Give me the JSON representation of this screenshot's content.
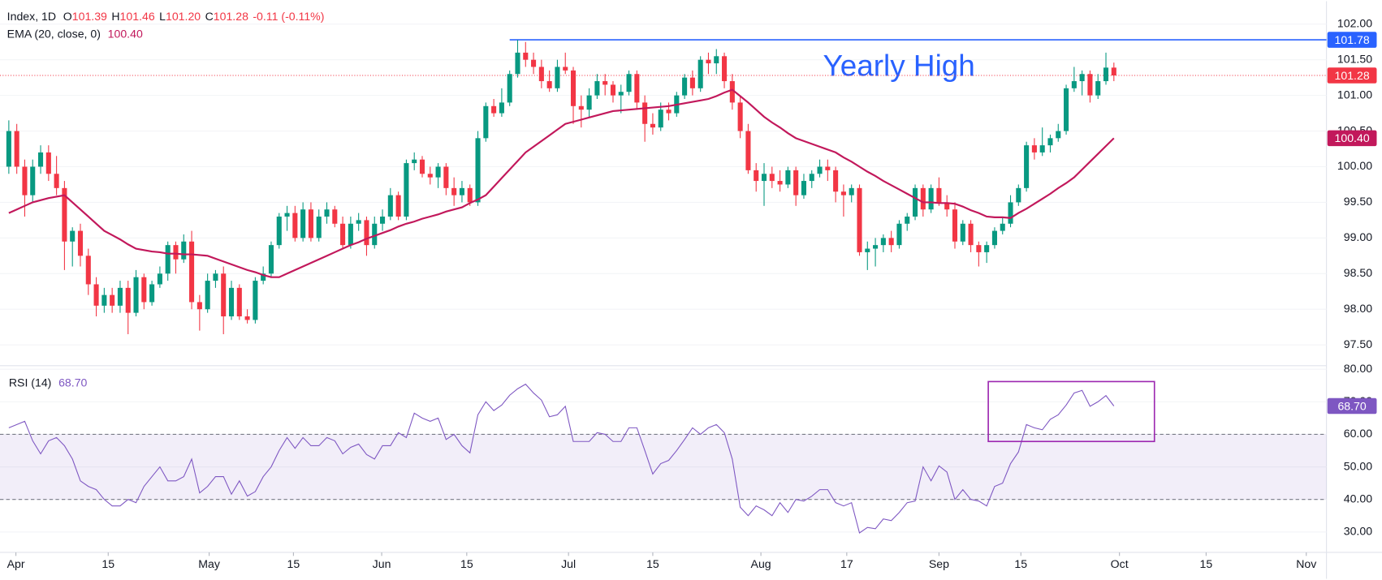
{
  "chart_data": {
    "type": "candlestick",
    "header": {
      "symbol": "Index, 1D",
      "fields": [
        {
          "key": "O",
          "value": "101.39"
        },
        {
          "key": "H",
          "value": "101.46"
        },
        {
          "key": "L",
          "value": "101.20"
        },
        {
          "key": "C",
          "value": "101.28"
        }
      ],
      "change": "-0.11 (-0.11%)"
    },
    "up_color": "#089981",
    "down_color": "#f23645",
    "ohlc": [
      [
        100.0,
        100.65,
        99.9,
        100.5
      ],
      [
        100.5,
        100.6,
        99.9,
        100.0
      ],
      [
        100.0,
        100.1,
        99.3,
        99.6
      ],
      [
        99.6,
        100.1,
        99.5,
        100.0
      ],
      [
        100.0,
        100.3,
        99.9,
        100.2
      ],
      [
        100.2,
        100.3,
        99.8,
        99.9
      ],
      [
        99.9,
        100.15,
        99.6,
        99.7
      ],
      [
        99.7,
        99.8,
        98.55,
        98.95
      ],
      [
        98.95,
        99.15,
        98.6,
        99.1
      ],
      [
        99.1,
        99.2,
        98.6,
        98.75
      ],
      [
        98.75,
        98.85,
        98.2,
        98.35
      ],
      [
        98.35,
        98.45,
        97.9,
        98.05
      ],
      [
        98.05,
        98.3,
        97.95,
        98.2
      ],
      [
        98.2,
        98.3,
        97.95,
        98.05
      ],
      [
        98.05,
        98.4,
        97.95,
        98.3
      ],
      [
        98.3,
        98.4,
        97.65,
        97.95
      ],
      [
        97.95,
        98.55,
        97.9,
        98.45
      ],
      [
        98.45,
        98.5,
        98.0,
        98.1
      ],
      [
        98.1,
        98.4,
        98.05,
        98.35
      ],
      [
        98.35,
        98.6,
        98.3,
        98.5
      ],
      [
        98.5,
        98.95,
        98.4,
        98.9
      ],
      [
        98.9,
        98.95,
        98.5,
        98.7
      ],
      [
        98.7,
        99.05,
        98.65,
        98.95
      ],
      [
        98.95,
        99.1,
        98.0,
        98.1
      ],
      [
        98.1,
        98.2,
        97.7,
        98.0
      ],
      [
        98.0,
        98.5,
        97.95,
        98.4
      ],
      [
        98.4,
        98.55,
        98.3,
        98.5
      ],
      [
        98.5,
        98.6,
        97.65,
        97.9
      ],
      [
        97.9,
        98.4,
        97.85,
        98.3
      ],
      [
        98.3,
        98.35,
        97.85,
        97.9
      ],
      [
        97.9,
        98.0,
        97.8,
        97.85
      ],
      [
        97.85,
        98.45,
        97.8,
        98.4
      ],
      [
        98.4,
        98.6,
        98.35,
        98.5
      ],
      [
        98.5,
        98.95,
        98.45,
        98.9
      ],
      [
        98.9,
        99.35,
        98.85,
        99.3
      ],
      [
        99.3,
        99.45,
        99.1,
        99.35
      ],
      [
        99.35,
        99.45,
        98.95,
        99.0
      ],
      [
        99.0,
        99.5,
        98.95,
        99.4
      ],
      [
        99.4,
        99.5,
        98.95,
        99.0
      ],
      [
        99.0,
        99.4,
        98.95,
        99.3
      ],
      [
        99.3,
        99.5,
        99.2,
        99.4
      ],
      [
        99.4,
        99.45,
        99.15,
        99.2
      ],
      [
        99.2,
        99.3,
        98.85,
        98.9
      ],
      [
        98.9,
        99.3,
        98.85,
        99.2
      ],
      [
        99.2,
        99.35,
        99.1,
        99.25
      ],
      [
        99.25,
        99.3,
        98.75,
        98.9
      ],
      [
        98.9,
        99.3,
        98.85,
        99.2
      ],
      [
        99.2,
        99.4,
        99.1,
        99.3
      ],
      [
        99.3,
        99.7,
        99.25,
        99.6
      ],
      [
        99.6,
        99.65,
        99.25,
        99.3
      ],
      [
        99.3,
        100.1,
        99.25,
        100.05
      ],
      [
        100.05,
        100.2,
        99.95,
        100.1
      ],
      [
        100.1,
        100.15,
        99.85,
        99.9
      ],
      [
        99.9,
        100.0,
        99.75,
        99.85
      ],
      [
        99.85,
        100.05,
        99.7,
        100.0
      ],
      [
        100.0,
        100.05,
        99.6,
        99.7
      ],
      [
        99.7,
        99.85,
        99.45,
        99.6
      ],
      [
        99.6,
        99.8,
        99.5,
        99.7
      ],
      [
        99.7,
        99.75,
        99.45,
        99.5
      ],
      [
        99.5,
        100.5,
        99.45,
        100.4
      ],
      [
        100.4,
        100.9,
        100.35,
        100.85
      ],
      [
        100.85,
        100.95,
        100.7,
        100.75
      ],
      [
        100.75,
        101.1,
        100.7,
        100.9
      ],
      [
        100.9,
        101.35,
        100.85,
        101.3
      ],
      [
        101.3,
        101.78,
        101.25,
        101.6
      ],
      [
        101.6,
        101.75,
        101.4,
        101.5
      ],
      [
        101.5,
        101.6,
        101.3,
        101.4
      ],
      [
        101.4,
        101.5,
        101.1,
        101.2
      ],
      [
        101.2,
        101.35,
        101.05,
        101.1
      ],
      [
        101.1,
        101.5,
        101.05,
        101.4
      ],
      [
        101.4,
        101.6,
        101.3,
        101.35
      ],
      [
        101.35,
        101.4,
        100.6,
        100.85
      ],
      [
        100.85,
        101.0,
        100.55,
        100.8
      ],
      [
        100.8,
        101.1,
        100.7,
        101.0
      ],
      [
        101.0,
        101.3,
        100.95,
        101.2
      ],
      [
        101.2,
        101.3,
        101.0,
        101.15
      ],
      [
        101.15,
        101.2,
        100.9,
        101.0
      ],
      [
        101.0,
        101.15,
        100.75,
        101.05
      ],
      [
        101.05,
        101.35,
        101.0,
        101.3
      ],
      [
        101.3,
        101.35,
        100.8,
        100.9
      ],
      [
        100.9,
        101.0,
        100.35,
        100.6
      ],
      [
        100.6,
        100.75,
        100.45,
        100.55
      ],
      [
        100.55,
        100.9,
        100.5,
        100.8
      ],
      [
        100.8,
        100.9,
        100.65,
        100.75
      ],
      [
        100.75,
        101.05,
        100.7,
        101.0
      ],
      [
        101.0,
        101.3,
        100.95,
        101.25
      ],
      [
        101.25,
        101.35,
        101.0,
        101.1
      ],
      [
        101.1,
        101.55,
        101.05,
        101.5
      ],
      [
        101.5,
        101.6,
        101.3,
        101.45
      ],
      [
        101.45,
        101.65,
        101.3,
        101.55
      ],
      [
        101.55,
        101.6,
        101.1,
        101.2
      ],
      [
        101.2,
        101.3,
        100.8,
        100.9
      ],
      [
        100.9,
        101.0,
        100.4,
        100.5
      ],
      [
        100.5,
        100.6,
        99.9,
        99.95
      ],
      [
        99.95,
        100.05,
        99.65,
        99.8
      ],
      [
        99.8,
        100.05,
        99.45,
        99.9
      ],
      [
        99.9,
        100.0,
        99.7,
        99.8
      ],
      [
        99.8,
        99.95,
        99.65,
        99.75
      ],
      [
        99.75,
        100.0,
        99.7,
        99.95
      ],
      [
        99.95,
        100.0,
        99.45,
        99.6
      ],
      [
        99.6,
        99.9,
        99.55,
        99.8
      ],
      [
        99.8,
        99.95,
        99.7,
        99.9
      ],
      [
        99.9,
        100.1,
        99.85,
        100.0
      ],
      [
        100.0,
        100.1,
        99.8,
        99.95
      ],
      [
        99.95,
        100.0,
        99.5,
        99.65
      ],
      [
        99.65,
        99.75,
        99.3,
        99.6
      ],
      [
        99.6,
        99.75,
        99.5,
        99.7
      ],
      [
        99.7,
        99.75,
        98.75,
        98.8
      ],
      [
        98.8,
        98.95,
        98.55,
        98.85
      ],
      [
        98.85,
        99.0,
        98.6,
        98.9
      ],
      [
        98.9,
        99.05,
        98.8,
        99.0
      ],
      [
        99.0,
        99.1,
        98.8,
        98.9
      ],
      [
        98.9,
        99.25,
        98.85,
        99.2
      ],
      [
        99.2,
        99.35,
        99.1,
        99.3
      ],
      [
        99.3,
        99.75,
        99.25,
        99.7
      ],
      [
        99.7,
        99.75,
        99.3,
        99.4
      ],
      [
        99.4,
        99.75,
        99.35,
        99.7
      ],
      [
        99.7,
        99.85,
        99.45,
        99.5
      ],
      [
        99.5,
        99.6,
        99.3,
        99.4
      ],
      [
        99.4,
        99.5,
        98.85,
        98.95
      ],
      [
        98.95,
        99.25,
        98.9,
        99.2
      ],
      [
        99.2,
        99.25,
        98.8,
        98.9
      ],
      [
        98.9,
        98.95,
        98.6,
        98.8
      ],
      [
        98.8,
        98.95,
        98.65,
        98.9
      ],
      [
        98.9,
        99.15,
        98.85,
        99.1
      ],
      [
        99.1,
        99.3,
        99.05,
        99.2
      ],
      [
        99.2,
        99.6,
        99.15,
        99.5
      ],
      [
        99.5,
        99.75,
        99.45,
        99.7
      ],
      [
        99.7,
        100.35,
        99.65,
        100.3
      ],
      [
        100.3,
        100.4,
        100.1,
        100.2
      ],
      [
        100.2,
        100.55,
        100.15,
        100.3
      ],
      [
        100.3,
        100.45,
        100.2,
        100.4
      ],
      [
        100.4,
        100.6,
        100.35,
        100.5
      ],
      [
        100.5,
        101.15,
        100.45,
        101.1
      ],
      [
        101.1,
        101.4,
        101.05,
        101.2
      ],
      [
        101.2,
        101.35,
        101.0,
        101.3
      ],
      [
        101.3,
        101.35,
        100.9,
        101.0
      ],
      [
        101.0,
        101.3,
        100.95,
        101.2
      ],
      [
        101.2,
        101.6,
        101.15,
        101.39
      ],
      [
        101.39,
        101.46,
        101.2,
        101.28
      ]
    ],
    "ema": {
      "label": "EMA (20, close, 0)",
      "last_label": "100.40",
      "color": "#c2185b",
      "values": [
        99.35,
        99.4,
        99.45,
        99.5,
        99.53,
        99.56,
        99.58,
        99.6,
        99.5,
        99.4,
        99.3,
        99.2,
        99.1,
        99.04,
        98.98,
        98.91,
        98.85,
        98.83,
        98.81,
        98.8,
        98.78,
        98.78,
        98.77,
        98.77,
        98.76,
        98.75,
        98.71,
        98.67,
        98.63,
        98.59,
        98.55,
        98.52,
        98.48,
        98.45,
        98.45,
        98.5,
        98.55,
        98.6,
        98.65,
        98.7,
        98.75,
        98.8,
        98.85,
        98.9,
        98.94,
        98.99,
        99.03,
        99.07,
        99.11,
        99.16,
        99.2,
        99.23,
        99.27,
        99.3,
        99.33,
        99.37,
        99.4,
        99.43,
        99.49,
        99.54,
        99.6,
        99.72,
        99.84,
        99.96,
        100.08,
        100.2,
        100.28,
        100.36,
        100.44,
        100.52,
        100.6,
        100.63,
        100.66,
        100.69,
        100.72,
        100.75,
        100.78,
        100.79,
        100.8,
        100.81,
        100.82,
        100.83,
        100.84,
        100.85,
        100.87,
        100.89,
        100.91,
        100.93,
        100.95,
        100.99,
        101.04,
        101.08,
        100.99,
        100.9,
        100.8,
        100.7,
        100.62,
        100.55,
        100.47,
        100.4,
        100.36,
        100.32,
        100.28,
        100.24,
        100.2,
        100.13,
        100.07,
        100.0,
        99.93,
        99.87,
        99.8,
        99.74,
        99.68,
        99.62,
        99.56,
        99.5,
        99.5,
        99.49,
        99.49,
        99.48,
        99.44,
        99.39,
        99.35,
        99.3,
        99.29,
        99.29,
        99.28,
        99.35,
        99.41,
        99.48,
        99.55,
        99.62,
        99.7,
        99.77,
        99.85,
        99.96,
        100.07,
        100.18,
        100.29,
        100.4
      ]
    },
    "yearly_high": {
      "label": "Yearly High",
      "value": 101.78,
      "start": 63,
      "color": "#2962ff"
    },
    "ylim": [
      97.22,
      102.26
    ],
    "yticks": [
      {
        "value": 97.5,
        "label": "97.50"
      },
      {
        "value": 98,
        "label": "98.00"
      },
      {
        "value": 98.5,
        "label": "98.50"
      },
      {
        "value": 99,
        "label": "99.00"
      },
      {
        "value": 99.5,
        "label": "99.50"
      },
      {
        "value": 100,
        "label": "100.00"
      },
      {
        "value": 100.5,
        "label": "100.50"
      },
      {
        "value": 101,
        "label": "101.00"
      },
      {
        "value": 101.5,
        "label": "101.50"
      },
      {
        "value": 102,
        "label": "102.00"
      }
    ],
    "xlim": [
      -1.11,
      165.74
    ],
    "xticks": [
      {
        "value": 0.89,
        "label": "Apr"
      },
      {
        "value": 12.5,
        "label": "15"
      },
      {
        "value": 25.2,
        "label": "May"
      },
      {
        "value": 35.8,
        "label": "15"
      },
      {
        "value": 46.9,
        "label": "Jun"
      },
      {
        "value": 57.6,
        "label": "15"
      },
      {
        "value": 70.4,
        "label": "Jul"
      },
      {
        "value": 81.0,
        "label": "15"
      },
      {
        "value": 94.6,
        "label": "Aug"
      },
      {
        "value": 105.4,
        "label": "17"
      },
      {
        "value": 117.0,
        "label": "Sep"
      },
      {
        "value": 127.3,
        "label": "15"
      },
      {
        "value": 139.7,
        "label": "Oct"
      },
      {
        "value": 150.6,
        "label": "15"
      },
      {
        "value": 163.2,
        "label": "Nov"
      }
    ],
    "rsi": {
      "label": "RSI (14)",
      "last_label": "68.70",
      "color": "#7e57c2",
      "ylim": [
        24,
        80.8
      ],
      "yticks": [
        {
          "value": 30,
          "label": "30.00"
        },
        {
          "value": 40,
          "label": "40.00"
        },
        {
          "value": 50,
          "label": "50.00"
        },
        {
          "value": 60,
          "label": "60.00"
        },
        {
          "value": 70,
          "label": "70.00"
        },
        {
          "value": 80,
          "label": "80.00"
        }
      ],
      "band": [
        40,
        60
      ],
      "highlight": {
        "x": [
          123.2,
          144.1
        ],
        "y": [
          57.8,
          76.2
        ],
        "color": "#9c27b0"
      },
      "values": [
        62,
        63,
        64,
        58,
        54,
        58,
        59,
        56.5,
        52.4,
        45.7,
        44,
        43,
        40,
        38,
        38,
        40,
        39,
        44,
        47,
        50,
        45.7,
        45.7,
        47,
        52.4,
        42,
        44,
        47,
        47,
        41.6,
        45.7,
        41,
        42.4,
        47,
        50,
        55,
        59,
        55.7,
        59,
        56.5,
        56.5,
        59,
        58,
        54,
        56,
        57,
        53.8,
        52.4,
        56.5,
        56.5,
        60.5,
        59,
        66.5,
        65,
        64,
        65,
        58.4,
        60,
        56.5,
        54.3,
        66,
        70,
        67.3,
        69,
        72,
        74,
        75.4,
        72.7,
        70.5,
        65.4,
        66,
        68.6,
        57.8,
        57.8,
        57.8,
        60.5,
        60,
        57.8,
        57.8,
        62,
        62,
        55,
        47.8,
        51,
        52,
        55,
        58.4,
        62,
        60,
        62,
        63,
        60.5,
        52.4,
        37.6,
        35,
        38,
        36.8,
        35,
        39,
        36,
        40,
        39.5,
        41,
        43,
        43,
        39,
        38,
        39,
        29.7,
        31.4,
        31,
        34,
        33.5,
        36,
        39,
        39.5,
        50,
        45.7,
        50.3,
        48.4,
        40,
        43,
        40,
        39.5,
        38,
        44,
        45,
        51,
        54.6,
        63,
        62,
        61.4,
        64.6,
        66,
        69,
        72.7,
        73.5,
        68.6,
        70,
        71.9,
        68.7
      ]
    }
  }
}
